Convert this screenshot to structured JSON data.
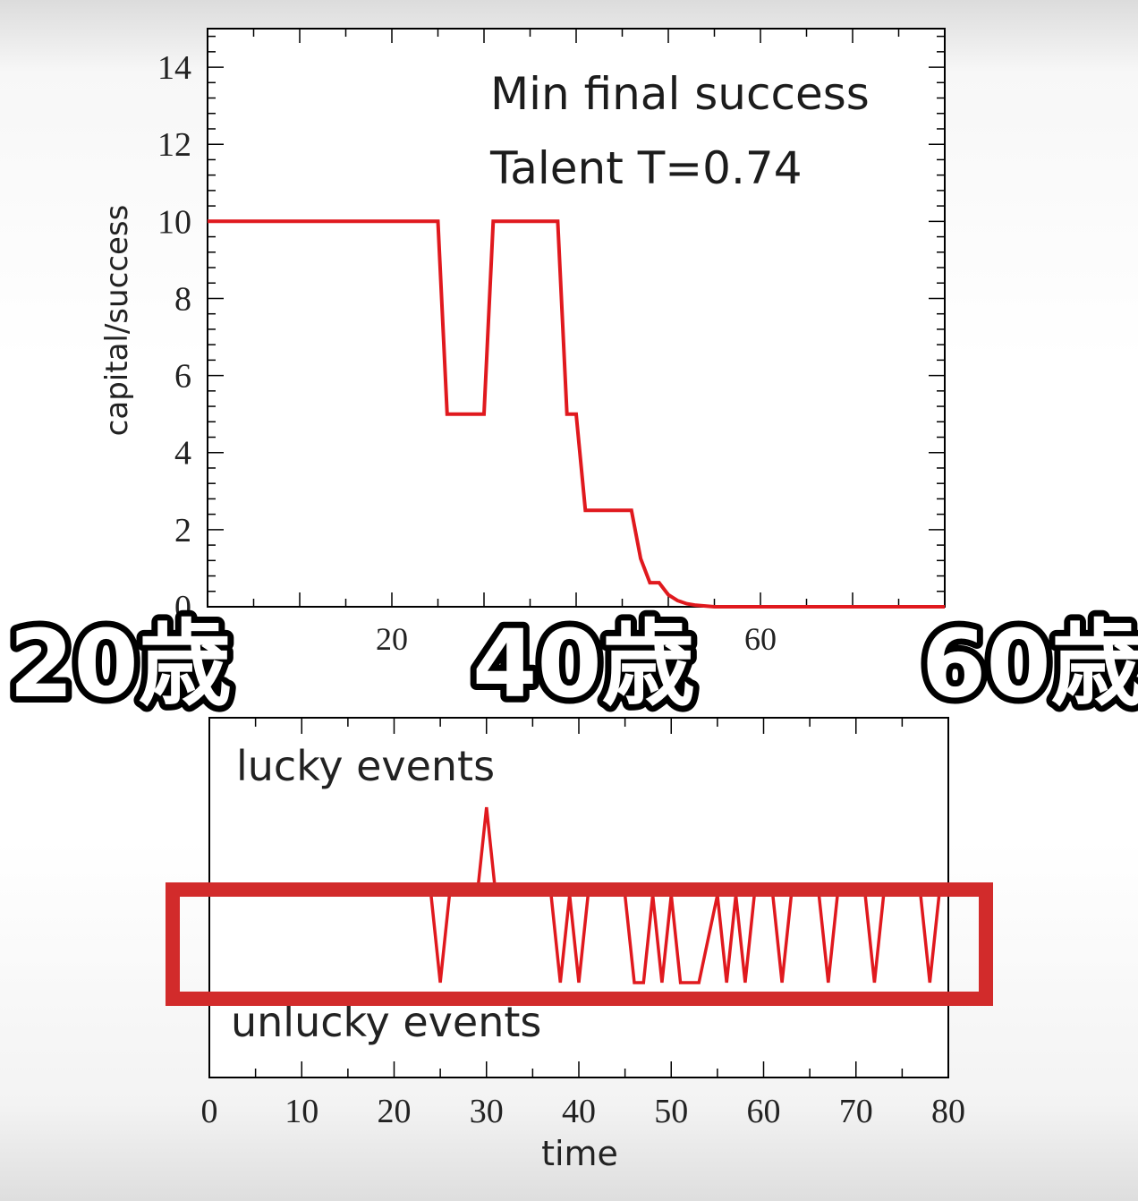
{
  "overlay": {
    "age_labels": [
      "20歳",
      "40歳",
      "60歳"
    ],
    "highlight_color": "#d22b2b"
  },
  "chart_data": [
    {
      "type": "line",
      "title": "",
      "annotation_lines": [
        "Min final success",
        "Talent T=0.74"
      ],
      "xlabel": "",
      "ylabel": "capital/success",
      "xlim": [
        0,
        80
      ],
      "ylim": [
        0,
        15
      ],
      "xticks": [
        20,
        60
      ],
      "yticks": [
        0,
        2,
        4,
        6,
        8,
        10,
        12,
        14
      ],
      "grid": false,
      "line_color": "#e0191e",
      "series": [
        {
          "x": [
            0,
            25,
            26,
            30,
            31,
            38,
            39,
            40,
            41,
            46,
            47,
            48,
            49,
            50,
            51,
            52,
            53,
            54,
            55,
            60,
            80
          ],
          "y": [
            10,
            10,
            5,
            5,
            10,
            10,
            5,
            5,
            2.5,
            2.5,
            1.25,
            0.625,
            0.625,
            0.31,
            0.16,
            0.08,
            0.04,
            0.02,
            0,
            0,
            0
          ]
        }
      ]
    },
    {
      "type": "line",
      "title": "",
      "xlabel": "time",
      "ylabel": "",
      "xlim": [
        0,
        80
      ],
      "ylim": [
        -1.3,
        1.3
      ],
      "xticks": [
        0,
        10,
        20,
        30,
        40,
        50,
        60,
        70,
        80
      ],
      "grid": false,
      "annotations": [
        "lucky events",
        "unlucky events"
      ],
      "line_color": "#e0191e",
      "lucky_event_times": [
        30
      ],
      "unlucky_event_times": [
        25,
        38,
        40,
        46,
        49,
        51,
        52,
        56,
        58,
        62,
        67,
        72,
        78
      ],
      "series": [
        {
          "x": [
            0,
            24,
            25,
            26,
            29,
            30,
            31,
            37,
            38,
            39,
            40,
            41,
            45,
            46,
            47,
            48,
            49,
            50,
            51,
            52,
            53,
            55,
            56,
            57,
            58,
            59,
            61,
            62,
            63,
            66,
            67,
            68,
            71,
            72,
            73,
            77,
            78,
            79,
            80
          ],
          "y": [
            0,
            0,
            -1,
            0,
            0,
            1,
            0,
            0,
            -1,
            0,
            -1,
            0,
            0,
            -1,
            -1,
            0,
            -1,
            0,
            -1,
            -1,
            -1,
            0,
            -1,
            0,
            -1,
            0,
            0,
            -1,
            0,
            0,
            -1,
            0,
            0,
            -1,
            0,
            0,
            -1,
            0,
            0
          ]
        }
      ]
    }
  ]
}
